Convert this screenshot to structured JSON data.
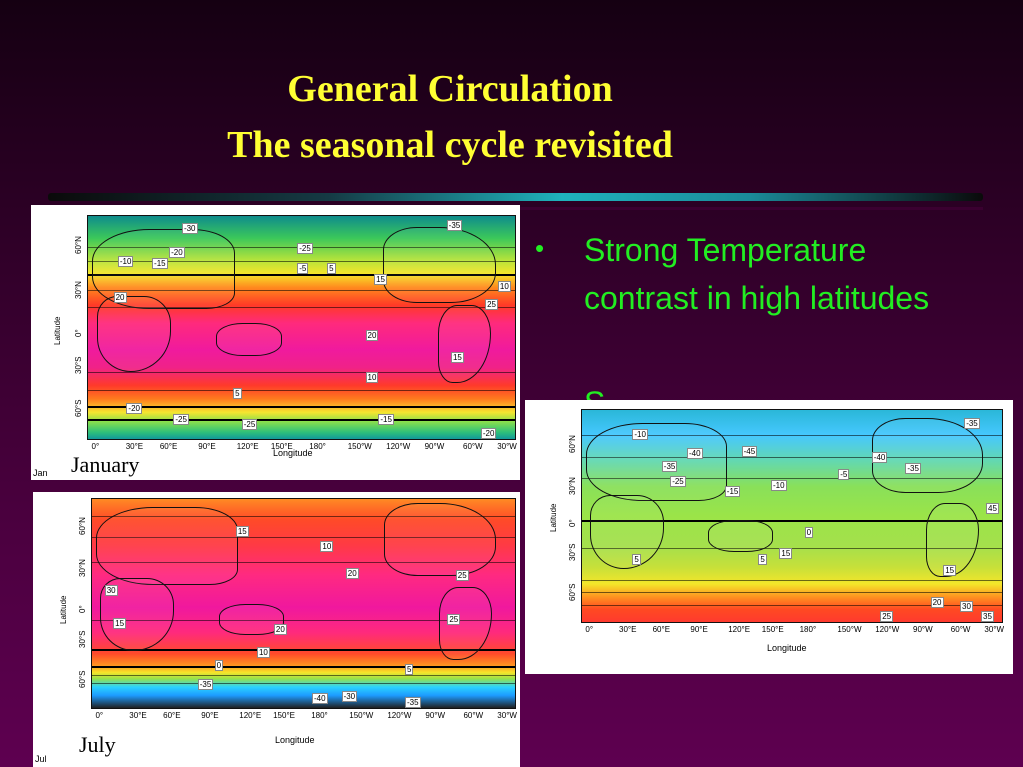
{
  "title": {
    "line1": "General Circulation",
    "line2": "The seasonal cycle revisited"
  },
  "bullet": {
    "marker": "•",
    "text": "Strong Temperature contrast in high latitudes",
    "next_partial": "S"
  },
  "panels": {
    "january": {
      "corner_caption": "Jan",
      "caption": "January",
      "y_axis_label": "Latitude",
      "x_axis_label": "Longitude",
      "lat_ticks": [
        "60°N",
        "30°N",
        "0°",
        "30°S",
        "60°S"
      ],
      "lon_ticks": [
        "0°",
        "30°E",
        "60°E",
        "90°E",
        "120°E",
        "150°E",
        "180°",
        "150°W",
        "120°W",
        "90°W",
        "60°W",
        "30°W"
      ],
      "contour_labels": [
        "-30",
        "-35",
        "-25",
        "-20",
        "-10",
        "-15",
        "-5",
        "5",
        "15",
        "10",
        "20",
        "25",
        "20",
        "15",
        "10",
        "5",
        "-20",
        "-25",
        "-25",
        "-15",
        "-20"
      ]
    },
    "july": {
      "corner_caption": "Jul",
      "caption": "July",
      "y_axis_label": "Latitude",
      "x_axis_label": "Longitude",
      "lat_ticks": [
        "60°N",
        "30°N",
        "0°",
        "30°S",
        "60°S"
      ],
      "lon_ticks": [
        "0°",
        "30°E",
        "60°E",
        "90°E",
        "120°E",
        "150°E",
        "180°",
        "150°W",
        "120°W",
        "90°W",
        "60°W",
        "30°W"
      ],
      "contour_labels": [
        "15",
        "10",
        "20",
        "25",
        "30",
        "25",
        "15",
        "20",
        "10",
        "0",
        "5",
        "-35",
        "-40",
        "-35",
        "-30"
      ]
    },
    "difference": {
      "y_axis_label": "Latitude",
      "x_axis_label": "Longitude",
      "lat_ticks": [
        "60°N",
        "30°N",
        "0°",
        "30°S",
        "60°S"
      ],
      "lon_ticks": [
        "0°",
        "30°E",
        "60°E",
        "90°E",
        "120°E",
        "150°E",
        "180°",
        "150°W",
        "120°W",
        "90°W",
        "60°W",
        "30°W"
      ],
      "contour_labels": [
        "-35",
        "-10",
        "-40",
        "-45",
        "-35",
        "-40",
        "-35",
        "-25",
        "-15",
        "-10",
        "-5",
        "0",
        "5",
        "5",
        "15",
        "15",
        "20",
        "30",
        "35",
        "25",
        "45"
      ]
    }
  },
  "colors": {
    "title": "#ffff33",
    "bullet": "#22ee22",
    "background": "#4c0040"
  }
}
